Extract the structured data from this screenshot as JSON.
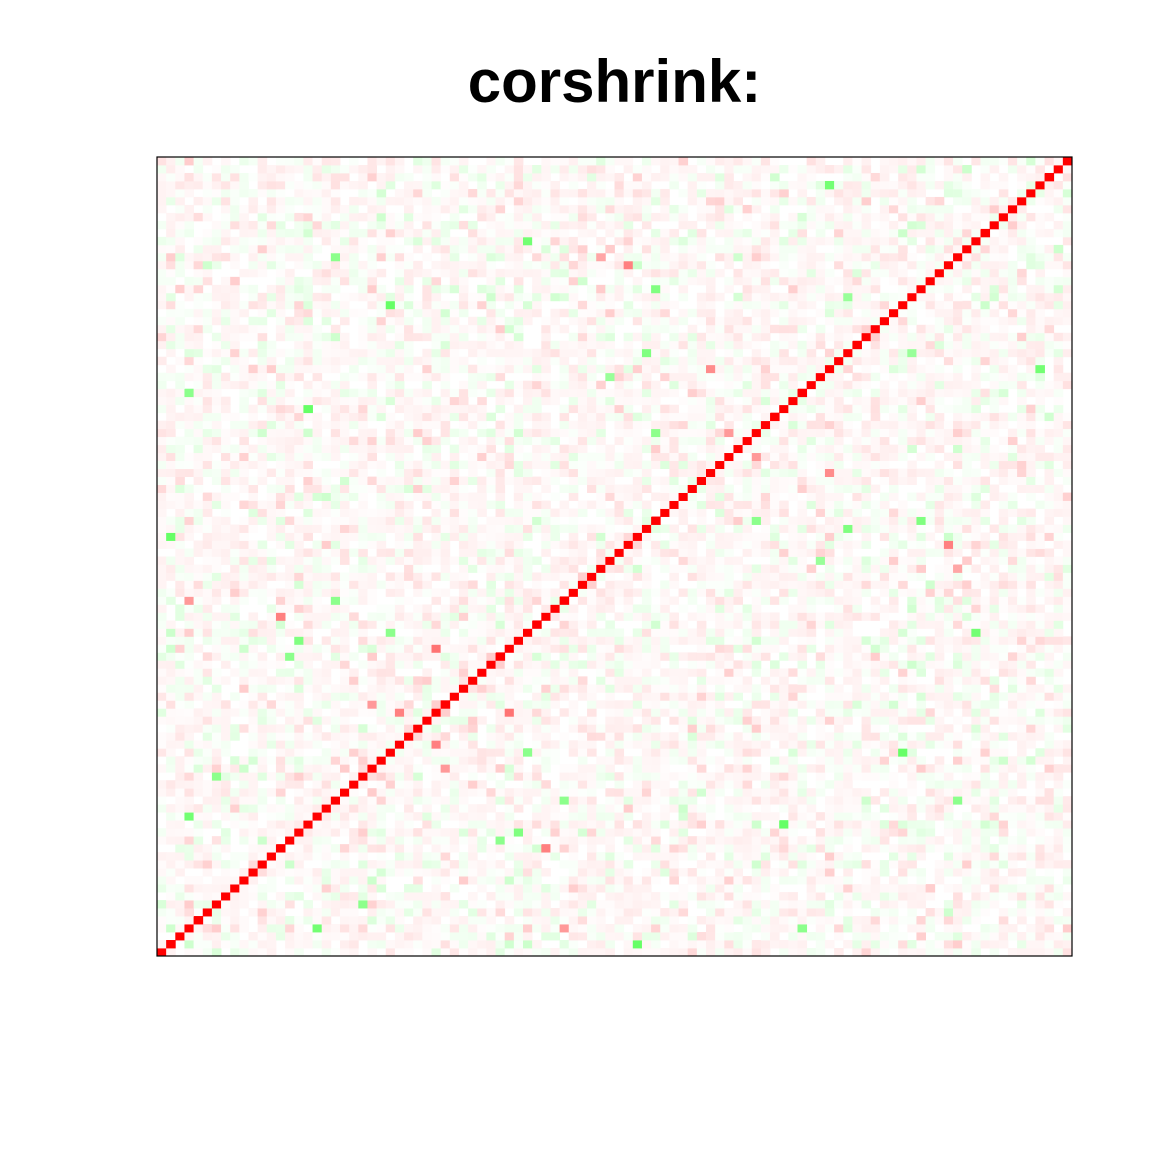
{
  "chart_data": {
    "type": "heatmap",
    "title": "corshrink:",
    "xlabel": "",
    "ylabel": "",
    "n_variables": 100,
    "value_range": [
      -1,
      1
    ],
    "axes_shown": false,
    "tick_labels_shown": false,
    "grid": false,
    "legend": "none",
    "colors": {
      "negative": "#00ff00",
      "zero": "#ffffff",
      "positive": "#ff0000",
      "border": "#000000"
    },
    "diagonal_value": 1.0,
    "off_diagonal_typical_abs": 0.05,
    "notable_cells": [
      {
        "row": 3,
        "col": 17,
        "value": -0.55
      },
      {
        "row": 13,
        "col": 42,
        "value": 0.5
      },
      {
        "row": 15,
        "col": 39,
        "value": -0.5
      },
      {
        "row": 16,
        "col": 68,
        "value": -0.6
      },
      {
        "row": 22,
        "col": 6,
        "value": -0.45
      },
      {
        "row": 23,
        "col": 31,
        "value": 0.4
      },
      {
        "row": 25,
        "col": 81,
        "value": -0.6
      },
      {
        "row": 30,
        "col": 26,
        "value": 0.5
      },
      {
        "row": 30,
        "col": 38,
        "value": 0.55
      },
      {
        "row": 37,
        "col": 14,
        "value": -0.45
      },
      {
        "row": 40,
        "col": 25,
        "value": -0.45
      },
      {
        "row": 44,
        "col": 3,
        "value": 0.4
      },
      {
        "row": 44,
        "col": 19,
        "value": -0.45
      },
      {
        "row": 51,
        "col": 86,
        "value": 0.5
      },
      {
        "row": 52,
        "col": 1,
        "value": -0.6
      },
      {
        "row": 54,
        "col": 83,
        "value": -0.5
      },
      {
        "row": 54,
        "col": 65,
        "value": 0.45
      },
      {
        "row": 60,
        "col": 73,
        "value": 0.45
      },
      {
        "row": 65,
        "col": 54,
        "value": -0.45
      },
      {
        "row": 65,
        "col": 62,
        "value": 0.4
      },
      {
        "row": 70,
        "col": 3,
        "value": -0.45
      },
      {
        "row": 72,
        "col": 49,
        "value": -0.4
      },
      {
        "row": 73,
        "col": 96,
        "value": -0.55
      },
      {
        "row": 75,
        "col": 53,
        "value": -0.5
      },
      {
        "row": 82,
        "col": 75,
        "value": -0.4
      },
      {
        "row": 87,
        "col": 19,
        "value": -0.45
      },
      {
        "row": 87,
        "col": 48,
        "value": 0.35
      },
      {
        "row": 89,
        "col": 40,
        "value": -0.55
      }
    ]
  }
}
